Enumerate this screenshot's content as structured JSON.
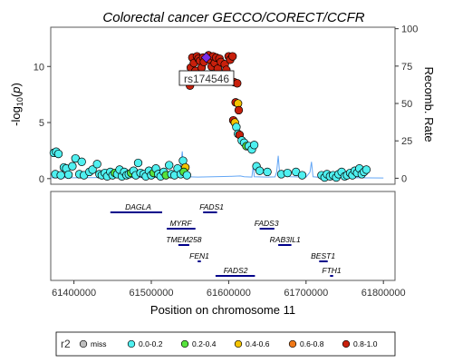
{
  "chart_data": {
    "type": "scatter",
    "title": "Colorectal cancer GECCO/CORECT/CCFR",
    "xlabel": "Position on chromosome 11",
    "ylabel": "-log10(p)",
    "ylabel_right": "Recomb. Rate",
    "xlim": [
      61370000,
      61815000
    ],
    "ylim": [
      -0.5,
      13.5
    ],
    "ylim_right": [
      -4,
      101
    ],
    "xticks": [
      61400000,
      61500000,
      61600000,
      61700000,
      61800000
    ],
    "xtick_labels": [
      "61400000",
      "61500000",
      "61600000",
      "61700000",
      "61800000"
    ],
    "yticks": [
      0,
      5,
      10
    ],
    "yticks_right": [
      0,
      25,
      50,
      75,
      100
    ],
    "lead_snp": {
      "name": "rs174546",
      "x": 61571000,
      "y": 10.8
    },
    "r2_colors": {
      "miss": "#bebebe",
      "0.0-0.2": "#4ff0f0",
      "0.2-0.4": "#56e33c",
      "0.4-0.6": "#f5c400",
      "0.6-0.8": "#f07818",
      "0.8-1.0": "#c8200c"
    },
    "lead_color": "#7a2ce6",
    "recomb_color": "#63a6f5",
    "points": [
      {
        "x": 61374000,
        "y": 2.3,
        "r2": "0.0-0.2"
      },
      {
        "x": 61377000,
        "y": 2.4,
        "r2": "0.0-0.2"
      },
      {
        "x": 61380000,
        "y": 2.2,
        "r2": "0.0-0.2"
      },
      {
        "x": 61376000,
        "y": 0.4,
        "r2": "0.0-0.2"
      },
      {
        "x": 61383000,
        "y": 0.3,
        "r2": "0.0-0.2"
      },
      {
        "x": 61387000,
        "y": 1.0,
        "r2": "0.0-0.2"
      },
      {
        "x": 61390000,
        "y": 0.9,
        "r2": "0.0-0.2"
      },
      {
        "x": 61393000,
        "y": 0.35,
        "r2": "0.0-0.2"
      },
      {
        "x": 61398000,
        "y": 1.1,
        "r2": "0.0-0.2"
      },
      {
        "x": 61402000,
        "y": 1.8,
        "r2": "0.0-0.2"
      },
      {
        "x": 61407000,
        "y": 0.4,
        "r2": "0.0-0.2"
      },
      {
        "x": 61410000,
        "y": 1.5,
        "r2": "0.0-0.2"
      },
      {
        "x": 61413000,
        "y": 0.3,
        "r2": "0.0-0.2"
      },
      {
        "x": 61420000,
        "y": 0.6,
        "r2": "0.0-0.2"
      },
      {
        "x": 61424000,
        "y": 0.8,
        "r2": "0.0-0.2"
      },
      {
        "x": 61430000,
        "y": 1.3,
        "r2": "0.0-0.2"
      },
      {
        "x": 61433000,
        "y": 0.4,
        "r2": "0.0-0.2"
      },
      {
        "x": 61436000,
        "y": 0.3,
        "r2": "0.0-0.2"
      },
      {
        "x": 61440000,
        "y": 0.5,
        "r2": "0.0-0.2"
      },
      {
        "x": 61443000,
        "y": 0.2,
        "r2": "0.0-0.2"
      },
      {
        "x": 61447000,
        "y": 0.6,
        "r2": "0.0-0.2"
      },
      {
        "x": 61450000,
        "y": 0.3,
        "r2": "0.0-0.2"
      },
      {
        "x": 61453000,
        "y": 0.5,
        "r2": "0.2-0.4"
      },
      {
        "x": 61456000,
        "y": 0.4,
        "r2": "0.0-0.2"
      },
      {
        "x": 61459000,
        "y": 0.8,
        "r2": "0.0-0.2"
      },
      {
        "x": 61462000,
        "y": 0.2,
        "r2": "0.0-0.2"
      },
      {
        "x": 61465000,
        "y": 0.6,
        "r2": "0.0-0.2"
      },
      {
        "x": 61468000,
        "y": 0.3,
        "r2": "0.0-0.2"
      },
      {
        "x": 61471000,
        "y": 0.4,
        "r2": "0.0-0.2"
      },
      {
        "x": 61474000,
        "y": 0.5,
        "r2": "0.2-0.4"
      },
      {
        "x": 61477000,
        "y": 0.7,
        "r2": "0.0-0.2"
      },
      {
        "x": 61480000,
        "y": 0.3,
        "r2": "0.0-0.2"
      },
      {
        "x": 61483000,
        "y": 1.4,
        "r2": "0.0-0.2"
      },
      {
        "x": 61486000,
        "y": 0.5,
        "r2": "0.0-0.2"
      },
      {
        "x": 61490000,
        "y": 0.4,
        "r2": "0.0-0.2"
      },
      {
        "x": 61493000,
        "y": 0.2,
        "r2": "0.0-0.2"
      },
      {
        "x": 61497000,
        "y": 0.7,
        "r2": "0.0-0.2"
      },
      {
        "x": 61500000,
        "y": 0.3,
        "r2": "0.0-0.2"
      },
      {
        "x": 61503000,
        "y": 0.5,
        "r2": "0.2-0.4"
      },
      {
        "x": 61506000,
        "y": 0.9,
        "r2": "0.0-0.2"
      },
      {
        "x": 61509000,
        "y": 0.4,
        "r2": "0.0-0.2"
      },
      {
        "x": 61512000,
        "y": 0.2,
        "r2": "0.0-0.2"
      },
      {
        "x": 61516000,
        "y": 0.6,
        "r2": "0.0-0.2"
      },
      {
        "x": 61519000,
        "y": 0.3,
        "r2": "0.2-0.4"
      },
      {
        "x": 61523000,
        "y": 1.2,
        "r2": "0.0-0.2"
      },
      {
        "x": 61526000,
        "y": 0.4,
        "r2": "0.0-0.2"
      },
      {
        "x": 61530000,
        "y": 0.3,
        "r2": "0.0-0.2"
      },
      {
        "x": 61534000,
        "y": 0.9,
        "r2": "0.0-0.2"
      },
      {
        "x": 61538000,
        "y": 0.4,
        "r2": "0.0-0.2"
      },
      {
        "x": 61541000,
        "y": 1.6,
        "r2": "0.0-0.2"
      },
      {
        "x": 61544000,
        "y": 1.0,
        "r2": "0.4-0.6"
      },
      {
        "x": 61542000,
        "y": 0.6,
        "r2": "0.2-0.4"
      },
      {
        "x": 61546000,
        "y": 0.3,
        "r2": "0.0-0.2"
      },
      {
        "x": 61550000,
        "y": 8.3,
        "r2": "0.8-1.0"
      },
      {
        "x": 61549000,
        "y": 9.2,
        "r2": "0.8-1.0"
      },
      {
        "x": 61551000,
        "y": 9.9,
        "r2": "0.8-1.0"
      },
      {
        "x": 61553000,
        "y": 10.8,
        "r2": "0.8-1.0"
      },
      {
        "x": 61555000,
        "y": 10.3,
        "r2": "0.8-1.0"
      },
      {
        "x": 61557000,
        "y": 9.6,
        "r2": "0.8-1.0"
      },
      {
        "x": 61559000,
        "y": 10.9,
        "r2": "0.8-1.0"
      },
      {
        "x": 61561000,
        "y": 10.7,
        "r2": "0.8-1.0"
      },
      {
        "x": 61563000,
        "y": 10.5,
        "r2": "0.8-1.0"
      },
      {
        "x": 61565000,
        "y": 9.9,
        "r2": "0.8-1.0"
      },
      {
        "x": 61567000,
        "y": 10.8,
        "r2": "0.8-1.0"
      },
      {
        "x": 61568000,
        "y": 10.4,
        "r2": "0.8-1.0"
      },
      {
        "x": 61574000,
        "y": 11.0,
        "r2": "0.8-1.0"
      },
      {
        "x": 61576000,
        "y": 10.6,
        "r2": "0.8-1.0"
      },
      {
        "x": 61578000,
        "y": 10.0,
        "r2": "0.8-1.0"
      },
      {
        "x": 61580000,
        "y": 10.9,
        "r2": "0.8-1.0"
      },
      {
        "x": 61582000,
        "y": 10.3,
        "r2": "0.8-1.0"
      },
      {
        "x": 61584000,
        "y": 10.8,
        "r2": "0.8-1.0"
      },
      {
        "x": 61586000,
        "y": 9.8,
        "r2": "0.8-1.0"
      },
      {
        "x": 61588000,
        "y": 10.7,
        "r2": "0.8-1.0"
      },
      {
        "x": 61590000,
        "y": 10.4,
        "r2": "0.8-1.0"
      },
      {
        "x": 61592000,
        "y": 9.3,
        "r2": "0.8-1.0"
      },
      {
        "x": 61595000,
        "y": 10.2,
        "r2": "0.8-1.0"
      },
      {
        "x": 61597000,
        "y": 9.7,
        "r2": "0.8-1.0"
      },
      {
        "x": 61600000,
        "y": 10.9,
        "r2": "0.8-1.0"
      },
      {
        "x": 61602000,
        "y": 10.6,
        "r2": "0.8-1.0"
      },
      {
        "x": 61605000,
        "y": 10.9,
        "r2": "0.8-1.0"
      },
      {
        "x": 61599000,
        "y": 9.0,
        "r2": "0.8-1.0"
      },
      {
        "x": 61607000,
        "y": 8.6,
        "r2": "0.8-1.0"
      },
      {
        "x": 61611000,
        "y": 8.5,
        "r2": "0.8-1.0"
      },
      {
        "x": 61609000,
        "y": 6.8,
        "r2": "0.8-1.0"
      },
      {
        "x": 61612000,
        "y": 6.7,
        "r2": "0.4-0.6"
      },
      {
        "x": 61613000,
        "y": 6.1,
        "r2": "0.8-1.0"
      },
      {
        "x": 61606000,
        "y": 5.2,
        "r2": "0.8-1.0"
      },
      {
        "x": 61608000,
        "y": 5.0,
        "r2": "0.4-0.6"
      },
      {
        "x": 61610000,
        "y": 4.6,
        "r2": "0.0-0.2"
      },
      {
        "x": 61612000,
        "y": 4.0,
        "r2": "0.0-0.2"
      },
      {
        "x": 61614000,
        "y": 3.9,
        "r2": "0.8-1.0"
      },
      {
        "x": 61617000,
        "y": 3.4,
        "r2": "0.0-0.2"
      },
      {
        "x": 61620000,
        "y": 3.2,
        "r2": "0.0-0.2"
      },
      {
        "x": 61623000,
        "y": 2.9,
        "r2": "0.2-0.4"
      },
      {
        "x": 61626000,
        "y": 2.9,
        "r2": "0.0-0.2"
      },
      {
        "x": 61630000,
        "y": 2.6,
        "r2": "0.0-0.2"
      },
      {
        "x": 61633000,
        "y": 3.0,
        "r2": "0.0-0.2"
      },
      {
        "x": 61636000,
        "y": 1.1,
        "r2": "0.0-0.2"
      },
      {
        "x": 61640000,
        "y": 0.7,
        "r2": "0.0-0.2"
      },
      {
        "x": 61650000,
        "y": 0.6,
        "r2": "0.0-0.2"
      },
      {
        "x": 61668000,
        "y": 0.4,
        "r2": "0.0-0.2"
      },
      {
        "x": 61676000,
        "y": 0.5,
        "r2": "0.0-0.2"
      },
      {
        "x": 61687000,
        "y": 0.6,
        "r2": "0.0-0.2"
      },
      {
        "x": 61695000,
        "y": 0.3,
        "r2": "0.0-0.2"
      },
      {
        "x": 61720000,
        "y": 0.3,
        "r2": "0.0-0.2"
      },
      {
        "x": 61724000,
        "y": 0.1,
        "r2": "0.0-0.2"
      },
      {
        "x": 61727000,
        "y": 0.4,
        "r2": "0.0-0.2"
      },
      {
        "x": 61731000,
        "y": 0.2,
        "r2": "0.0-0.2"
      },
      {
        "x": 61735000,
        "y": 0.3,
        "r2": "0.0-0.2"
      },
      {
        "x": 61739000,
        "y": 0.1,
        "r2": "0.0-0.2"
      },
      {
        "x": 61742000,
        "y": 0.4,
        "r2": "0.0-0.2"
      },
      {
        "x": 61746000,
        "y": 0.6,
        "r2": "0.0-0.2"
      },
      {
        "x": 61750000,
        "y": 0.2,
        "r2": "0.0-0.2"
      },
      {
        "x": 61753000,
        "y": 0.3,
        "r2": "0.0-0.2"
      },
      {
        "x": 61757000,
        "y": 0.5,
        "r2": "0.0-0.2"
      },
      {
        "x": 61760000,
        "y": 0.3,
        "r2": "0.0-0.2"
      },
      {
        "x": 61763000,
        "y": 0.7,
        "r2": "0.0-0.2"
      },
      {
        "x": 61766000,
        "y": 0.5,
        "r2": "0.0-0.2"
      },
      {
        "x": 61769000,
        "y": 0.9,
        "r2": "0.0-0.2"
      },
      {
        "x": 61772000,
        "y": 0.4,
        "r2": "0.0-0.2"
      },
      {
        "x": 61775000,
        "y": 0.6,
        "r2": "0.0-0.2"
      },
      {
        "x": 61778000,
        "y": 0.8,
        "r2": "0.0-0.2"
      }
    ],
    "recomb_rate": [
      [
        61370000,
        0.3
      ],
      [
        61400000,
        0.3
      ],
      [
        61440000,
        0.5
      ],
      [
        61480000,
        0.4
      ],
      [
        61520000,
        0.6
      ],
      [
        61535000,
        0.8
      ],
      [
        61538000,
        8
      ],
      [
        61540000,
        18
      ],
      [
        61542000,
        4
      ],
      [
        61545000,
        1
      ],
      [
        61560000,
        0.8
      ],
      [
        61580000,
        1
      ],
      [
        61600000,
        1.2
      ],
      [
        61615000,
        1.5
      ],
      [
        61620000,
        1
      ],
      [
        61630000,
        0.8
      ],
      [
        61632000,
        9
      ],
      [
        61633000,
        1
      ],
      [
        61650000,
        0.8
      ],
      [
        61660000,
        0.9
      ],
      [
        61662000,
        4
      ],
      [
        61664000,
        15
      ],
      [
        61666000,
        2
      ],
      [
        61680000,
        1
      ],
      [
        61700000,
        0.8
      ],
      [
        61705000,
        4
      ],
      [
        61707000,
        11
      ],
      [
        61709000,
        1
      ],
      [
        61720000,
        0.5
      ],
      [
        61760000,
        0.3
      ],
      [
        61800000,
        0.2
      ]
    ],
    "genes": [
      {
        "name": "DAGLA",
        "start": 61447000,
        "end": 61514000,
        "label_x": 61483000,
        "row": 0
      },
      {
        "name": "FADS1",
        "start": 61567000,
        "end": 61585000,
        "label_x": 61578000,
        "row": 0
      },
      {
        "name": "MYRF",
        "start": 61520000,
        "end": 61557000,
        "label_x": 61538000,
        "row": 1
      },
      {
        "name": "FADS3",
        "start": 61640000,
        "end": 61659000,
        "label_x": 61649000,
        "row": 1
      },
      {
        "name": "TMEM258",
        "start": 61535000,
        "end": 61549000,
        "label_x": 61542000,
        "row": 2
      },
      {
        "name": "RAB3IL1",
        "start": 61664000,
        "end": 61681000,
        "label_x": 61673000,
        "row": 2
      },
      {
        "name": "FEN1",
        "start": 61560000,
        "end": 61564000,
        "label_x": 61562000,
        "row": 3
      },
      {
        "name": "BEST1",
        "start": 61717000,
        "end": 61728000,
        "label_x": 61722000,
        "row": 3
      },
      {
        "name": "FADS2",
        "start": 61583000,
        "end": 61634000,
        "label_x": 61609000,
        "row": 4
      },
      {
        "name": "FTH1",
        "start": 61731000,
        "end": 61735000,
        "label_x": 61733000,
        "row": 4
      }
    ],
    "legend": {
      "title": "r2",
      "entries": [
        {
          "label": "miss",
          "key": "miss"
        },
        {
          "label": "0.0-0.2",
          "key": "0.0-0.2"
        },
        {
          "label": "0.2-0.4",
          "key": "0.2-0.4"
        },
        {
          "label": "0.4-0.6",
          "key": "0.4-0.6"
        },
        {
          "label": "0.6-0.8",
          "key": "0.6-0.8"
        },
        {
          "label": "0.8-1.0",
          "key": "0.8-1.0"
        }
      ]
    }
  }
}
